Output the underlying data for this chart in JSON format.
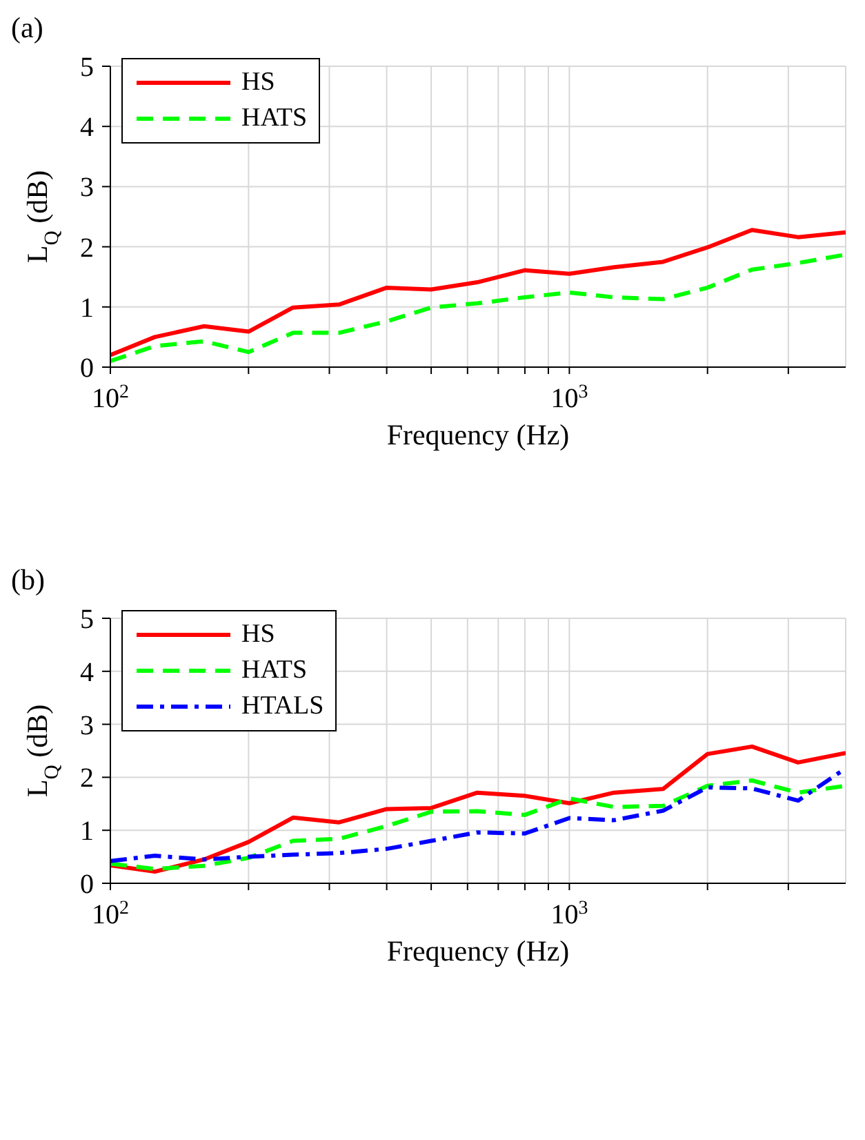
{
  "chart_data": [
    {
      "type": "line",
      "title": "(a)",
      "xlabel": "Frequency (Hz)",
      "ylabel": "L$_{Q}$ (dB)",
      "log": "x",
      "grid": true,
      "legend": "top left",
      "x": [
        100,
        125,
        160,
        200,
        250,
        315,
        400,
        500,
        630,
        800,
        1000,
        1250,
        1600,
        2000,
        2500,
        3150,
        4000
      ],
      "xlim": [
        100,
        4000
      ],
      "xticks": [
        {
          "value": 100,
          "label": "10$^{2}$"
        },
        {
          "value": 200,
          "label": null
        },
        {
          "value": 300,
          "label": null
        },
        {
          "value": 400,
          "label": null
        },
        {
          "value": 500,
          "label": null
        },
        {
          "value": 600,
          "label": null
        },
        {
          "value": 700,
          "label": null
        },
        {
          "value": 800,
          "label": null
        },
        {
          "value": 900,
          "label": null
        },
        {
          "value": 1000,
          "label": "10$^{3}$"
        },
        {
          "value": 2000,
          "label": null
        },
        {
          "value": 3000,
          "label": null
        }
      ],
      "ylim": [
        0,
        5
      ],
      "yticks": [
        0,
        1,
        2,
        3,
        4,
        5
      ],
      "series": [
        {
          "name": "HS",
          "color": "#ff0000",
          "line_style": "solid",
          "values": [
            0.2,
            0.5,
            0.68,
            0.59,
            0.99,
            1.04,
            1.32,
            1.29,
            1.41,
            1.61,
            1.55,
            1.66,
            1.75,
            1.99,
            2.28,
            2.16,
            2.24
          ]
        },
        {
          "name": "HATS",
          "color": "#00ff00",
          "line_style": "dashed",
          "values": [
            0.1,
            0.35,
            0.43,
            0.25,
            0.57,
            0.57,
            0.76,
            0.99,
            1.06,
            1.16,
            1.24,
            1.16,
            1.13,
            1.32,
            1.62,
            1.73,
            1.87
          ]
        }
      ]
    },
    {
      "type": "line",
      "title": "(b)",
      "xlabel": "Frequency (Hz)",
      "ylabel": "L$_{Q}$ (dB)",
      "log": "x",
      "grid": true,
      "legend": "top left",
      "x": [
        100,
        125,
        160,
        200,
        250,
        315,
        400,
        500,
        630,
        800,
        1000,
        1250,
        1600,
        2000,
        2500,
        3150,
        4000
      ],
      "xlim": [
        100,
        4000
      ],
      "xticks": [
        {
          "value": 100,
          "label": "10$^{2}$"
        },
        {
          "value": 200,
          "label": null
        },
        {
          "value": 300,
          "label": null
        },
        {
          "value": 400,
          "label": null
        },
        {
          "value": 500,
          "label": null
        },
        {
          "value": 600,
          "label": null
        },
        {
          "value": 700,
          "label": null
        },
        {
          "value": 800,
          "label": null
        },
        {
          "value": 900,
          "label": null
        },
        {
          "value": 1000,
          "label": "10$^{3}$"
        },
        {
          "value": 2000,
          "label": null
        },
        {
          "value": 3000,
          "label": null
        }
      ],
      "ylim": [
        0,
        5
      ],
      "yticks": [
        0,
        1,
        2,
        3,
        4,
        5
      ],
      "series": [
        {
          "name": "HS",
          "color": "#ff0000",
          "line_style": "solid",
          "values": [
            0.34,
            0.22,
            0.45,
            0.78,
            1.24,
            1.15,
            1.4,
            1.42,
            1.71,
            1.65,
            1.51,
            1.71,
            1.78,
            2.44,
            2.58,
            2.28,
            2.46
          ]
        },
        {
          "name": "HATS",
          "color": "#00ff00",
          "line_style": "dashed",
          "values": [
            0.37,
            0.27,
            0.33,
            0.48,
            0.8,
            0.84,
            1.08,
            1.35,
            1.36,
            1.29,
            1.6,
            1.44,
            1.46,
            1.84,
            1.94,
            1.71,
            1.84
          ]
        },
        {
          "name": "HTALS",
          "color": "#0000ff",
          "line_style": "dashdot",
          "values": [
            0.42,
            0.52,
            0.45,
            0.5,
            0.54,
            0.57,
            0.65,
            0.8,
            0.96,
            0.94,
            1.23,
            1.19,
            1.37,
            1.81,
            1.79,
            1.56,
            2.17
          ]
        }
      ]
    }
  ]
}
